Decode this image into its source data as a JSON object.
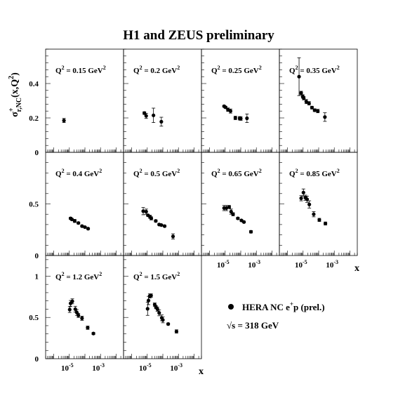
{
  "figure": {
    "title": "H1 and ZEUS preliminary",
    "ylabel": "σ+r,NC(x,Q2)",
    "xlabel": "x",
    "legend": {
      "entry": "HERA NC e+p (prel.)",
      "energy": "√s = 318 GeV",
      "placement": "bottom-right"
    }
  },
  "chart_data": {
    "type": "scatter",
    "title": "H1 and ZEUS preliminary",
    "xlabel": "x",
    "ylabel": "σ+r,NC(x,Q2)",
    "x_scale": "log",
    "xlim": [
      3e-07,
      0.03
    ],
    "x_ticks": [
      {
        "value": 1e-05,
        "label": "10-5"
      },
      {
        "value": 0.001,
        "label": "10-3"
      }
    ],
    "series_name": "HERA NC e+p (prel.)",
    "rows": [
      {
        "ylim": [
          0,
          0.6
        ],
        "yticks": [
          "0",
          "0.2",
          "0.4"
        ],
        "ytick_values": [
          0,
          0.2,
          0.4
        ]
      },
      {
        "ylim": [
          0,
          1.0
        ],
        "yticks": [
          "0",
          "0.5"
        ],
        "ytick_values": [
          0,
          0.5
        ]
      },
      {
        "ylim": [
          0,
          1.25
        ],
        "yticks": [
          "0",
          "0.5",
          "1"
        ],
        "ytick_values": [
          0,
          0.5,
          1
        ]
      }
    ],
    "panels": [
      {
        "q2_label": "Q2 = 0.15 GeV2",
        "q2": "0.15",
        "row": 0,
        "col": 0,
        "points": [
          {
            "x": 4.5e-06,
            "y": 0.185,
            "err": 0.012
          }
        ]
      },
      {
        "q2_label": "Q2 = 0.2 GeV2",
        "q2": "0.2",
        "row": 0,
        "col": 1,
        "points": [
          {
            "x": 6.5e-06,
            "y": 0.228,
            "err": 0.008
          },
          {
            "x": 8.5e-06,
            "y": 0.212,
            "err": 0.015
          },
          {
            "x": 2.5e-05,
            "y": 0.215,
            "err": 0.042
          },
          {
            "x": 8e-05,
            "y": 0.178,
            "err": 0.026
          }
        ]
      },
      {
        "q2_label": "Q2 = 0.25 GeV2",
        "q2": "0.25",
        "row": 0,
        "col": 2,
        "points": [
          {
            "x": 8.5e-06,
            "y": 0.268,
            "err": 0.005
          },
          {
            "x": 1.05e-05,
            "y": 0.262,
            "err": 0.006
          },
          {
            "x": 1.5e-05,
            "y": 0.248,
            "err": 0.01
          },
          {
            "x": 2.2e-05,
            "y": 0.24,
            "err": 0.012
          },
          {
            "x": 4.5e-05,
            "y": 0.2,
            "err": 0.01
          },
          {
            "x": 8.5e-05,
            "y": 0.198,
            "err": 0.01
          },
          {
            "x": 0.0001,
            "y": 0.196,
            "err": 0.01
          },
          {
            "x": 0.00025,
            "y": 0.198,
            "err": 0.025
          }
        ]
      },
      {
        "q2_label": "Q2 = 0.35 GeV2",
        "q2": "0.35",
        "row": 0,
        "col": 3,
        "points": [
          {
            "x": 5.5e-06,
            "y": 0.44,
            "err": 0.11
          },
          {
            "x": 7.5e-06,
            "y": 0.345,
            "err": 0.01
          },
          {
            "x": 9.5e-06,
            "y": 0.325,
            "err": 0.01
          },
          {
            "x": 1.1e-05,
            "y": 0.315,
            "err": 0.01
          },
          {
            "x": 1.6e-05,
            "y": 0.295,
            "err": 0.012
          },
          {
            "x": 2.4e-05,
            "y": 0.285,
            "err": 0.01
          },
          {
            "x": 3.7e-05,
            "y": 0.26,
            "err": 0.008
          },
          {
            "x": 5.5e-05,
            "y": 0.245,
            "err": 0.008
          },
          {
            "x": 8.8e-05,
            "y": 0.24,
            "err": 0.01
          },
          {
            "x": 0.00025,
            "y": 0.205,
            "err": 0.025
          }
        ]
      },
      {
        "q2_label": "Q2 = 0.4 GeV2",
        "q2": "0.4",
        "row": 1,
        "col": 0,
        "points": [
          {
            "x": 1.2e-05,
            "y": 0.36,
            "err": 0.01
          },
          {
            "x": 1.45e-05,
            "y": 0.35,
            "err": 0.01
          },
          {
            "x": 2.2e-05,
            "y": 0.335,
            "err": 0.015
          },
          {
            "x": 3.8e-05,
            "y": 0.315,
            "err": 0.01
          },
          {
            "x": 6.5e-05,
            "y": 0.285,
            "err": 0.008
          },
          {
            "x": 0.0001,
            "y": 0.275,
            "err": 0.008
          },
          {
            "x": 0.00016,
            "y": 0.26,
            "err": 0.008
          }
        ]
      },
      {
        "q2_label": "Q2 = 0.5 GeV2",
        "q2": "0.5",
        "row": 1,
        "col": 1,
        "points": [
          {
            "x": 5.5e-06,
            "y": 0.43,
            "err": 0.035
          },
          {
            "x": 8.5e-06,
            "y": 0.425,
            "err": 0.025
          },
          {
            "x": 1.1e-05,
            "y": 0.39,
            "err": 0.01
          },
          {
            "x": 1.5e-05,
            "y": 0.375,
            "err": 0.015
          },
          {
            "x": 1.8e-05,
            "y": 0.36,
            "err": 0.015
          },
          {
            "x": 3.5e-05,
            "y": 0.335,
            "err": 0.01
          },
          {
            "x": 5.8e-05,
            "y": 0.3,
            "err": 0.008
          },
          {
            "x": 8e-05,
            "y": 0.295,
            "err": 0.008
          },
          {
            "x": 0.00013,
            "y": 0.285,
            "err": 0.008
          },
          {
            "x": 0.00045,
            "y": 0.185,
            "err": 0.025
          }
        ]
      },
      {
        "q2_label": "Q2 = 0.65 GeV2",
        "q2": "0.65",
        "row": 1,
        "col": 2,
        "points": [
          {
            "x": 8.5e-06,
            "y": 0.46,
            "err": 0.025
          },
          {
            "x": 1.2e-05,
            "y": 0.46,
            "err": 0.025
          },
          {
            "x": 1.8e-05,
            "y": 0.47,
            "err": 0.015
          },
          {
            "x": 2.4e-05,
            "y": 0.425,
            "err": 0.025
          },
          {
            "x": 3.2e-05,
            "y": 0.4,
            "err": 0.015
          },
          {
            "x": 6.5e-05,
            "y": 0.36,
            "err": 0.01
          },
          {
            "x": 0.00011,
            "y": 0.34,
            "err": 0.008
          },
          {
            "x": 0.00016,
            "y": 0.325,
            "err": 0.008
          },
          {
            "x": 0.00045,
            "y": 0.23,
            "err": 0.012
          }
        ]
      },
      {
        "q2_label": "Q2 = 0.85 GeV2",
        "q2": "0.85",
        "row": 1,
        "col": 3,
        "points": [
          {
            "x": 7.5e-06,
            "y": 0.555,
            "err": 0.025
          },
          {
            "x": 1.05e-05,
            "y": 0.61,
            "err": 0.035
          },
          {
            "x": 1.4e-05,
            "y": 0.56,
            "err": 0.025
          },
          {
            "x": 1.8e-05,
            "y": 0.545,
            "err": 0.03
          },
          {
            "x": 2.5e-05,
            "y": 0.495,
            "err": 0.035
          },
          {
            "x": 4.8e-05,
            "y": 0.4,
            "err": 0.025
          },
          {
            "x": 0.00011,
            "y": 0.345,
            "err": 0.015
          },
          {
            "x": 0.00027,
            "y": 0.31,
            "err": 0.015
          }
        ]
      },
      {
        "q2_label": "Q2 = 1.2 GeV2",
        "q2": "1.2",
        "row": 2,
        "col": 0,
        "points": [
          {
            "x": 1.05e-05,
            "y": 0.595,
            "err": 0.035
          },
          {
            "x": 1.2e-05,
            "y": 0.67,
            "err": 0.035
          },
          {
            "x": 1.55e-05,
            "y": 0.695,
            "err": 0.03
          },
          {
            "x": 2.4e-05,
            "y": 0.6,
            "err": 0.035
          },
          {
            "x": 3e-05,
            "y": 0.56,
            "err": 0.035
          },
          {
            "x": 3.8e-05,
            "y": 0.525,
            "err": 0.025
          },
          {
            "x": 6.5e-05,
            "y": 0.49,
            "err": 0.025
          },
          {
            "x": 0.00015,
            "y": 0.375,
            "err": 0.02
          },
          {
            "x": 0.00035,
            "y": 0.305,
            "err": 0.012
          }
        ]
      },
      {
        "q2_label": "Q2 = 1.5 GeV2",
        "q2": "1.5",
        "row": 2,
        "col": 1,
        "points": [
          {
            "x": 1.05e-05,
            "y": 0.605,
            "err": 0.08
          },
          {
            "x": 1.2e-05,
            "y": 0.705,
            "err": 0.05
          },
          {
            "x": 1.45e-05,
            "y": 0.76,
            "err": 0.025
          },
          {
            "x": 1.75e-05,
            "y": 0.765,
            "err": 0.02
          },
          {
            "x": 3e-05,
            "y": 0.655,
            "err": 0.02
          },
          {
            "x": 3.6e-05,
            "y": 0.625,
            "err": 0.02
          },
          {
            "x": 4.5e-05,
            "y": 0.6,
            "err": 0.025
          },
          {
            "x": 5.8e-05,
            "y": 0.555,
            "err": 0.035
          },
          {
            "x": 8.5e-05,
            "y": 0.495,
            "err": 0.035
          },
          {
            "x": 0.0001,
            "y": 0.47,
            "err": 0.035
          },
          {
            "x": 0.00022,
            "y": 0.42,
            "err": 0.012
          },
          {
            "x": 0.00075,
            "y": 0.33,
            "err": 0.02
          }
        ]
      }
    ]
  }
}
